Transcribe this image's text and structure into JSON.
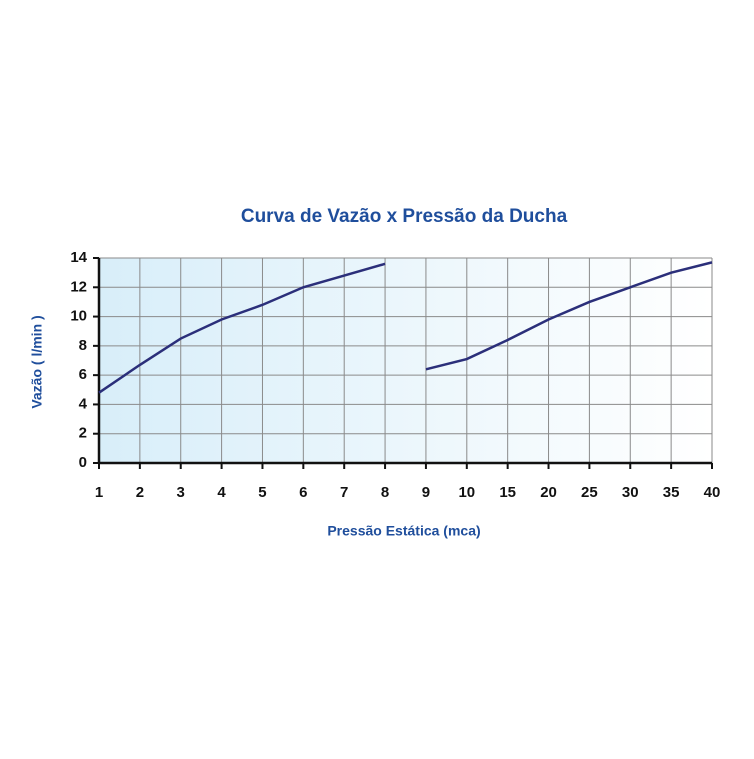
{
  "chart_data": {
    "type": "line",
    "title": "Curva de Vazão x Pressão da Ducha",
    "xlabel": "Pressão Estática (mca)",
    "ylabel": "Vazão ( l/min )",
    "categories": [
      "1",
      "2",
      "3",
      "4",
      "5",
      "6",
      "7",
      "8",
      "9",
      "10",
      "15",
      "20",
      "25",
      "30",
      "35",
      "40"
    ],
    "series": [
      {
        "color": "#2b2f7a",
        "values": [
          4.8,
          6.7,
          8.5,
          9.8,
          10.8,
          12.0,
          12.8,
          13.6,
          null,
          null,
          null,
          null,
          null,
          null,
          null,
          null
        ]
      },
      {
        "color": "#2b2f7a",
        "values": [
          null,
          null,
          null,
          null,
          null,
          null,
          null,
          null,
          6.4,
          7.1,
          8.4,
          9.8,
          11.0,
          12.0,
          13.0,
          13.7
        ]
      }
    ],
    "ylim": [
      0,
      14
    ],
    "yticks": [
      0,
      2,
      4,
      6,
      8,
      10,
      12,
      14
    ],
    "grid": true
  }
}
